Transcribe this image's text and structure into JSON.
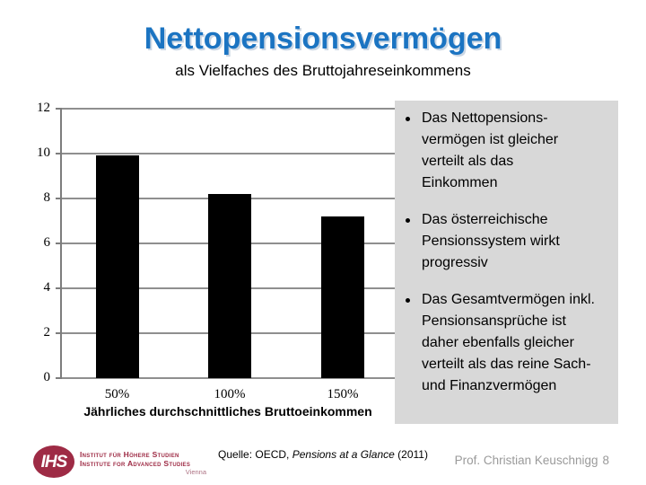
{
  "slide": {
    "title": "Nettopensionsvermögen",
    "subtitle": "als Vielfaches des Bruttojahreseinkommens",
    "bullets": [
      "Das Nettopensions-\nvermögen ist gleicher\nverteilt als das\nEinkommen",
      "Das österreichische\nPensionssystem wirkt\nprogressiv",
      "Das Gesamtvermögen inkl.\nPensionsansprüche ist\ndaher ebenfalls gleicher\nverteilt als das reine Sach-\nund Finanzvermögen"
    ],
    "footer": {
      "source_prefix": "Quelle: OECD, ",
      "source_title": "Pensions at a Glance",
      "source_suffix": " (2011)",
      "author": "Prof. Christian Keuschnigg",
      "page_number": "8"
    },
    "logo": {
      "monogram": "IHS",
      "line1": "Institut für Höhere Studien",
      "line2": "Institute for Advanced Studies",
      "city": "Vienna"
    },
    "colors": {
      "title_blue": "#1B74C2",
      "box_gray": "#D8D8D8",
      "logo_maroon": "#9E2B45",
      "logo_city_rose": "#AD7283",
      "footer_gray": "#9A9A9A",
      "text_black": "#000000"
    }
  },
  "chart_data": {
    "type": "bar",
    "categories": [
      "50%",
      "100%",
      "150%"
    ],
    "values": [
      9.9,
      8.2,
      7.2
    ],
    "title": "",
    "xlabel": "Jährliches durchschnittliches Bruttoeinkommen",
    "ylabel": "",
    "ylim": [
      0,
      12
    ],
    "yticks": [
      0,
      2,
      4,
      6,
      8,
      10,
      12
    ],
    "grid": true,
    "legend": false,
    "bar_color": "#000000",
    "grid_color": "#8F8F8F",
    "axis_color": "#7D7D7D"
  }
}
